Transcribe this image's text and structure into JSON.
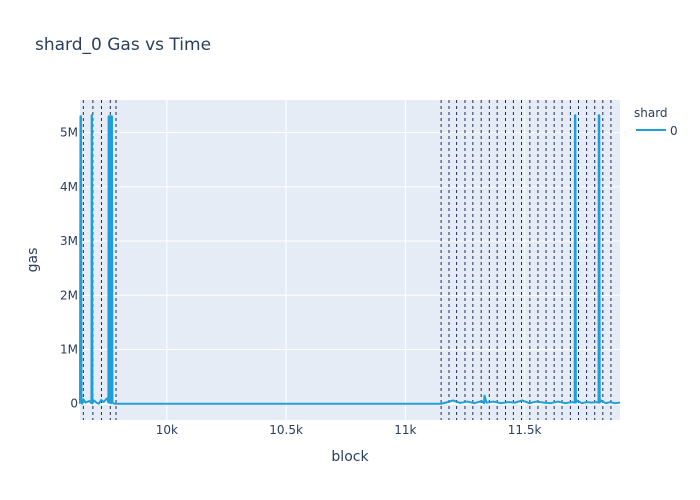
{
  "chart_data": {
    "type": "line",
    "title": "shard_0 Gas vs Time",
    "xlabel": "block",
    "ylabel": "gas",
    "xlim": [
      9636,
      11900
    ],
    "ylim": [
      -300000,
      5600000
    ],
    "grid": true,
    "x_ticks": [
      {
        "value": 10000,
        "label": "10k"
      },
      {
        "value": 10500,
        "label": "10.5k"
      },
      {
        "value": 11000,
        "label": "11k"
      },
      {
        "value": 11500,
        "label": "11.5k"
      }
    ],
    "y_ticks": [
      {
        "value": 0,
        "label": "0"
      },
      {
        "value": 1000000,
        "label": "1M"
      },
      {
        "value": 2000000,
        "label": "2M"
      },
      {
        "value": 3000000,
        "label": "3M"
      },
      {
        "value": 4000000,
        "label": "4M"
      },
      {
        "value": 5000000,
        "label": "5M"
      }
    ],
    "legend": {
      "title": "shard",
      "position": "top-right",
      "entries": [
        {
          "name": "0",
          "color": "#1f9fd9"
        }
      ]
    },
    "colors": {
      "series": "#1f9fd9",
      "plot_bg": "#e5ecf6",
      "grid": "#ffffff",
      "vlines": "#1f2a60",
      "text": "#2a3f5f"
    },
    "vlines": [
      9650,
      9690,
      9726,
      9763,
      9787,
      11150,
      11183,
      11215,
      11250,
      11283,
      11318,
      11352,
      11385,
      11420,
      11453,
      11487,
      11522,
      11556,
      11590,
      11624,
      11657,
      11692,
      11726,
      11760,
      11794,
      11828,
      11862
    ],
    "series": [
      {
        "name": "0",
        "x": [
          9636,
          9638,
          9640,
          9642,
          9645,
          9650,
          9660,
          9675,
          9684,
          9685,
          9686,
          9688,
          9695,
          9705,
          9715,
          9725,
          9735,
          9745,
          9750,
          9755,
          9756,
          9758,
          9760,
          9762,
          9764,
          9766,
          9768,
          9770,
          9772,
          9780,
          9800,
          11150,
          11170,
          11200,
          11230,
          11260,
          11290,
          11320,
          11330,
          11332,
          11340,
          11370,
          11400,
          11430,
          11460,
          11490,
          11520,
          11550,
          11580,
          11610,
          11640,
          11670,
          11700,
          11710,
          11711,
          11713,
          11715,
          11720,
          11740,
          11760,
          11780,
          11800,
          11810,
          11811,
          11813,
          11815,
          11820,
          11840,
          11860,
          11880,
          11900
        ],
        "values": [
          0,
          5300000,
          5300000,
          20000,
          0,
          80000,
          20000,
          50000,
          10000,
          5320000,
          5320000,
          10000,
          60000,
          20000,
          0,
          70000,
          30000,
          80000,
          100000,
          20000,
          5300000,
          5300000,
          20000,
          5300000,
          5300000,
          10000,
          5300000,
          5300000,
          20000,
          0,
          0,
          0,
          20000,
          60000,
          15000,
          40000,
          10000,
          50000,
          10000,
          150000,
          20000,
          40000,
          10000,
          30000,
          20000,
          60000,
          10000,
          40000,
          20000,
          10000,
          40000,
          10000,
          30000,
          20000,
          5320000,
          5320000,
          20000,
          60000,
          10000,
          30000,
          20000,
          30000,
          20000,
          5320000,
          5320000,
          20000,
          60000,
          10000,
          30000,
          10000,
          20000
        ]
      }
    ]
  }
}
